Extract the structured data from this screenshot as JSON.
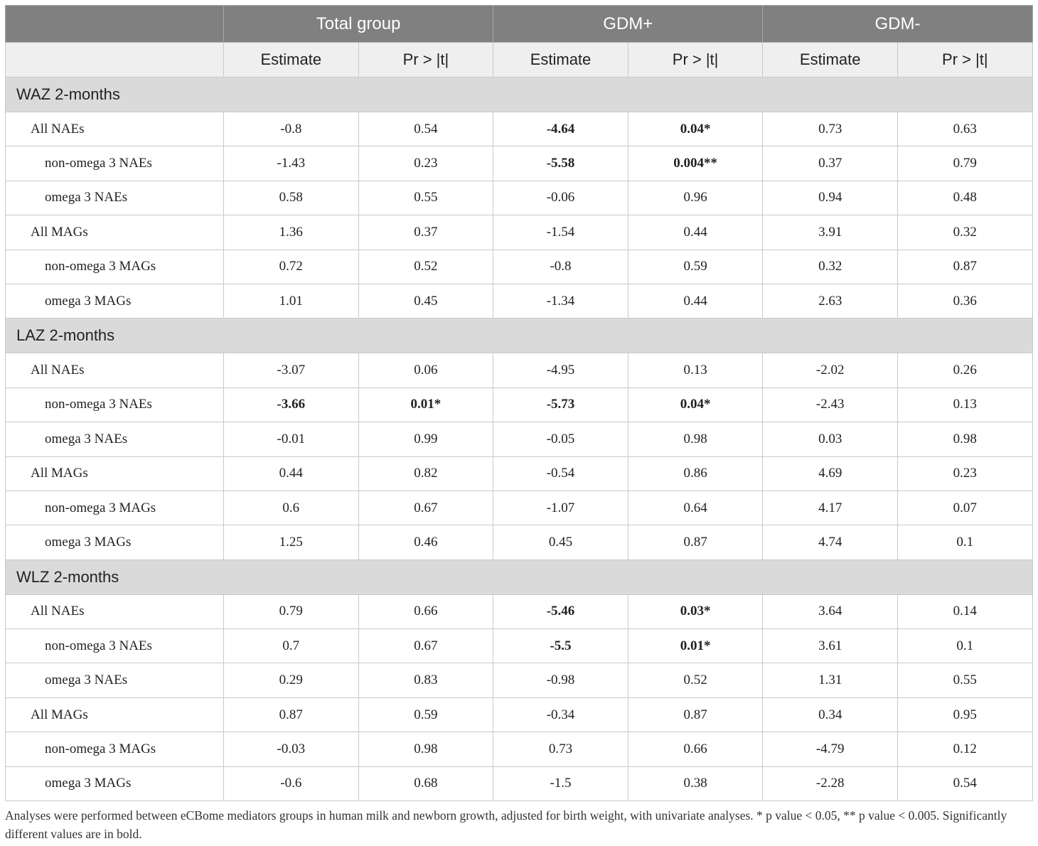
{
  "header": {
    "groups": [
      "Total group",
      "GDM+",
      "GDM-"
    ],
    "subcols": [
      "Estimate",
      "Pr > |t|",
      "Estimate",
      "Pr > |t|",
      "Estimate",
      "Pr > |t|"
    ]
  },
  "sections": [
    {
      "title": "WAZ 2-months",
      "rows": [
        {
          "label": "All NAEs",
          "level": 1,
          "values": [
            "-0.8",
            "0.54",
            "-4.64",
            "0.04*",
            "0.73",
            "0.63"
          ],
          "bold": [
            false,
            false,
            true,
            true,
            false,
            false
          ]
        },
        {
          "label": "non-omega 3 NAEs",
          "level": 2,
          "values": [
            "-1.43",
            "0.23",
            "-5.58",
            "0.004**",
            "0.37",
            "0.79"
          ],
          "bold": [
            false,
            false,
            true,
            true,
            false,
            false
          ]
        },
        {
          "label": "omega 3 NAEs",
          "level": 2,
          "values": [
            "0.58",
            "0.55",
            "-0.06",
            "0.96",
            "0.94",
            "0.48"
          ],
          "bold": [
            false,
            false,
            false,
            false,
            false,
            false
          ]
        },
        {
          "label": "All MAGs",
          "level": 1,
          "values": [
            "1.36",
            "0.37",
            "-1.54",
            "0.44",
            "3.91",
            "0.32"
          ],
          "bold": [
            false,
            false,
            false,
            false,
            false,
            false
          ]
        },
        {
          "label": "non-omega 3 MAGs",
          "level": 2,
          "values": [
            "0.72",
            "0.52",
            "-0.8",
            "0.59",
            "0.32",
            "0.87"
          ],
          "bold": [
            false,
            false,
            false,
            false,
            false,
            false
          ]
        },
        {
          "label": "omega 3 MAGs",
          "level": 2,
          "values": [
            "1.01",
            "0.45",
            "-1.34",
            "0.44",
            "2.63",
            "0.36"
          ],
          "bold": [
            false,
            false,
            false,
            false,
            false,
            false
          ]
        }
      ]
    },
    {
      "title": "LAZ 2-months",
      "rows": [
        {
          "label": "All NAEs",
          "level": 1,
          "values": [
            "-3.07",
            "0.06",
            "-4.95",
            "0.13",
            "-2.02",
            "0.26"
          ],
          "bold": [
            false,
            false,
            false,
            false,
            false,
            false
          ]
        },
        {
          "label": "non-omega 3 NAEs",
          "level": 2,
          "values": [
            "-3.66",
            "0.01*",
            "-5.73",
            "0.04*",
            "-2.43",
            "0.13"
          ],
          "bold": [
            true,
            true,
            true,
            true,
            false,
            false
          ]
        },
        {
          "label": "omega 3 NAEs",
          "level": 2,
          "values": [
            "-0.01",
            "0.99",
            "-0.05",
            "0.98",
            "0.03",
            "0.98"
          ],
          "bold": [
            false,
            false,
            false,
            false,
            false,
            false
          ]
        },
        {
          "label": "All MAGs",
          "level": 1,
          "values": [
            "0.44",
            "0.82",
            "-0.54",
            "0.86",
            "4.69",
            "0.23"
          ],
          "bold": [
            false,
            false,
            false,
            false,
            false,
            false
          ]
        },
        {
          "label": "non-omega 3 MAGs",
          "level": 2,
          "values": [
            "0.6",
            "0.67",
            "-1.07",
            "0.64",
            "4.17",
            "0.07"
          ],
          "bold": [
            false,
            false,
            false,
            false,
            false,
            false
          ]
        },
        {
          "label": "omega 3 MAGs",
          "level": 2,
          "values": [
            "1.25",
            "0.46",
            "0.45",
            "0.87",
            "4.74",
            "0.1"
          ],
          "bold": [
            false,
            false,
            false,
            false,
            false,
            false
          ]
        }
      ]
    },
    {
      "title": "WLZ 2-months",
      "rows": [
        {
          "label": "All NAEs",
          "level": 1,
          "values": [
            "0.79",
            "0.66",
            "-5.46",
            "0.03*",
            "3.64",
            "0.14"
          ],
          "bold": [
            false,
            false,
            true,
            true,
            false,
            false
          ]
        },
        {
          "label": "non-omega 3 NAEs",
          "level": 2,
          "values": [
            "0.7",
            "0.67",
            "-5.5",
            "0.01*",
            "3.61",
            "0.1"
          ],
          "bold": [
            false,
            false,
            true,
            true,
            false,
            false
          ]
        },
        {
          "label": "omega 3 NAEs",
          "level": 2,
          "values": [
            "0.29",
            "0.83",
            "-0.98",
            "0.52",
            "1.31",
            "0.55"
          ],
          "bold": [
            false,
            false,
            false,
            false,
            false,
            false
          ]
        },
        {
          "label": "All MAGs",
          "level": 1,
          "values": [
            "0.87",
            "0.59",
            "-0.34",
            "0.87",
            "0.34",
            "0.95"
          ],
          "bold": [
            false,
            false,
            false,
            false,
            false,
            false
          ]
        },
        {
          "label": "non-omega 3 MAGs",
          "level": 2,
          "values": [
            "-0.03",
            "0.98",
            "0.73",
            "0.66",
            "-4.79",
            "0.12"
          ],
          "bold": [
            false,
            false,
            false,
            false,
            false,
            false
          ]
        },
        {
          "label": "omega 3 MAGs",
          "level": 2,
          "values": [
            "-0.6",
            "0.68",
            "-1.5",
            "0.38",
            "-2.28",
            "0.54"
          ],
          "bold": [
            false,
            false,
            false,
            false,
            false,
            false
          ]
        }
      ]
    }
  ],
  "footnote": "Analyses were performed between eCBome mediators groups in human milk and newborn growth, adjusted for birth weight, with univariate analyses. * p value < 0.05, ** p value < 0.005. Significantly different values are in bold."
}
